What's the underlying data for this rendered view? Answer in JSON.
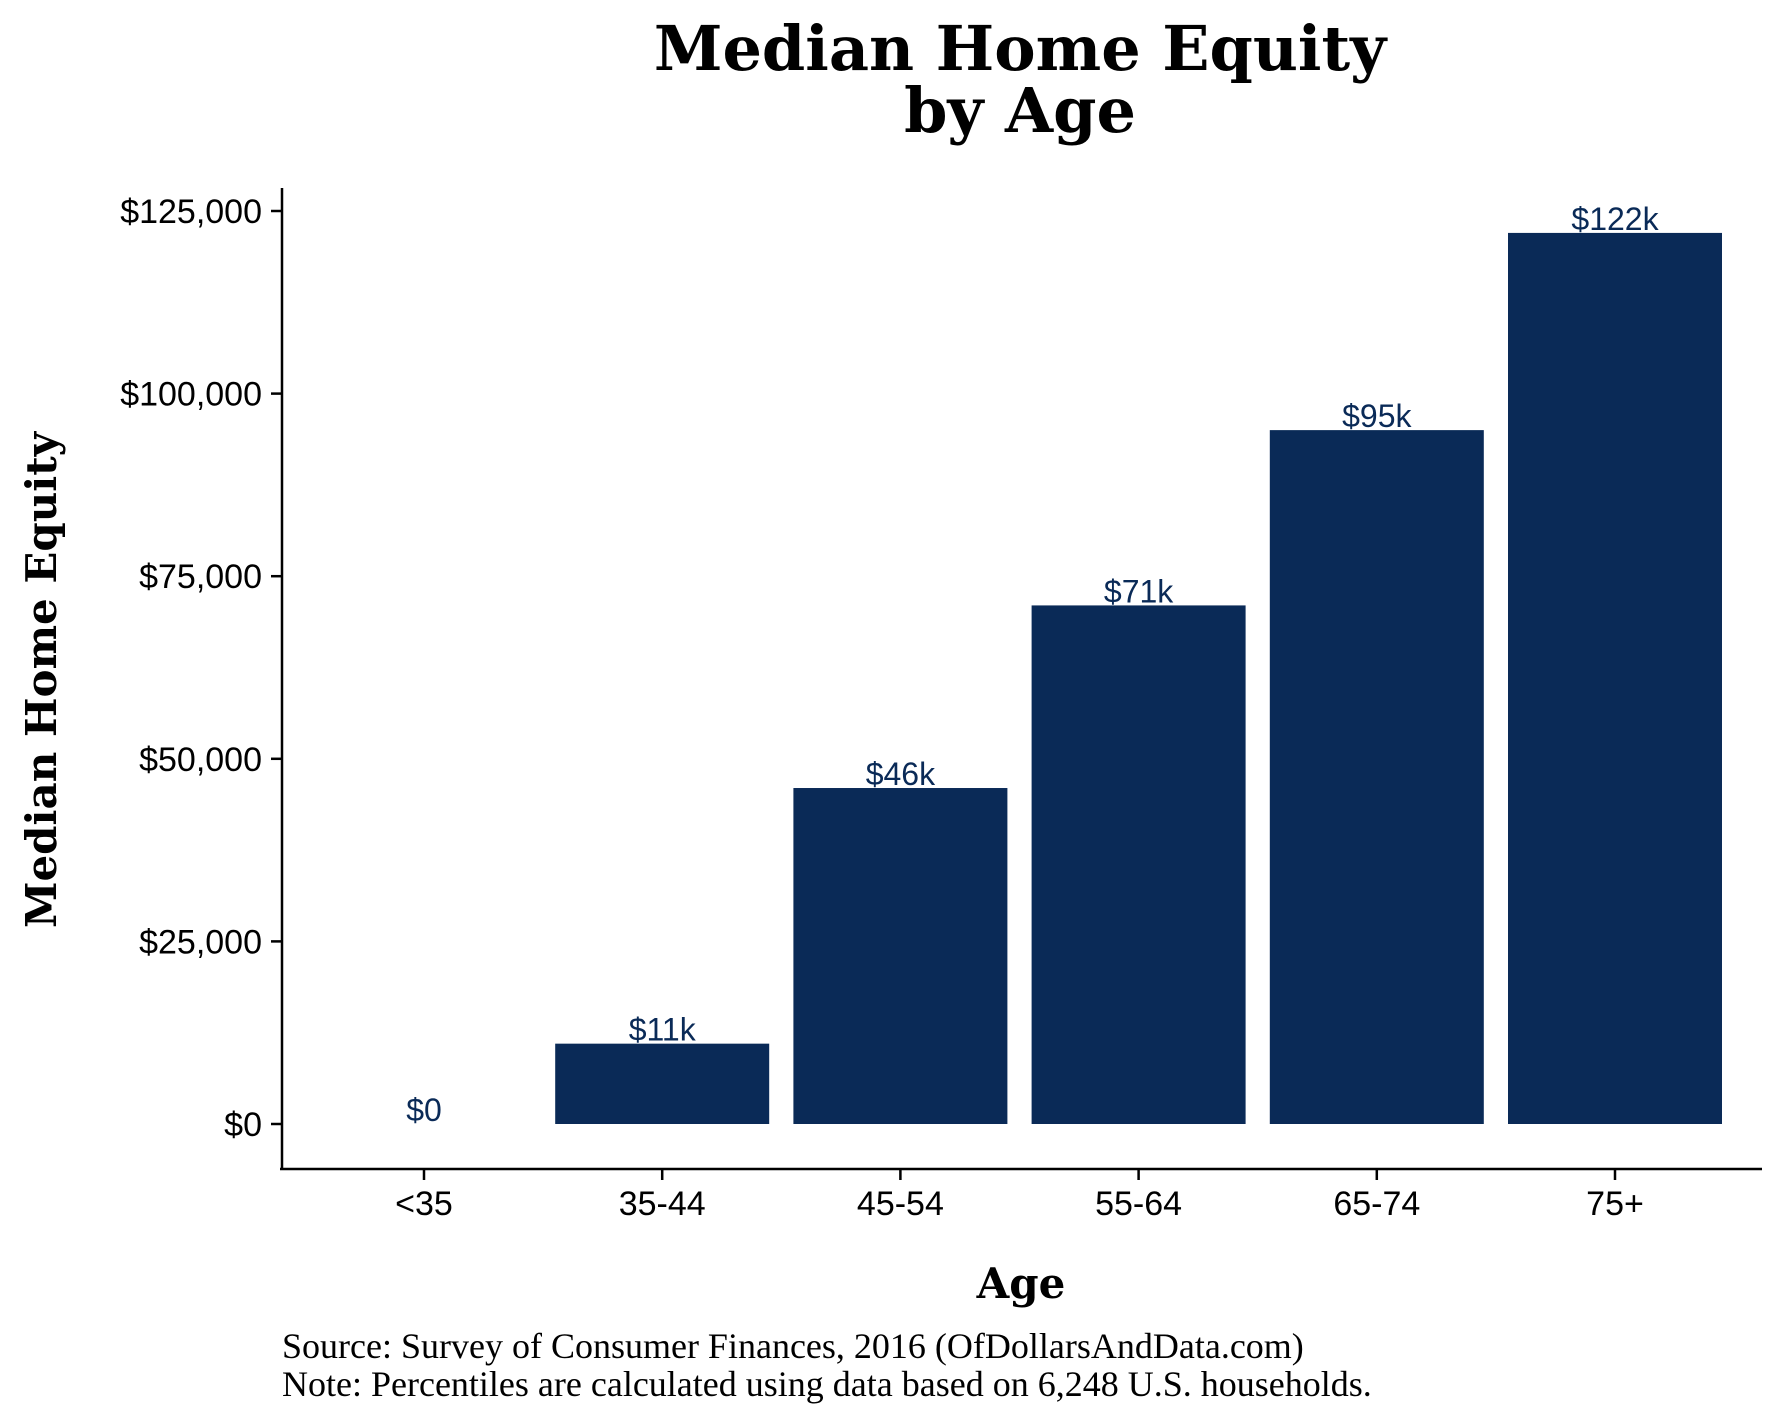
{
  "chart_data": {
    "type": "bar",
    "title_lines": [
      "Median Home Equity",
      "by Age"
    ],
    "xlabel": "Age",
    "ylabel": "Median Home Equity",
    "categories": [
      "<35",
      "35-44",
      "45-54",
      "55-64",
      "65-74",
      "75+"
    ],
    "values": [
      0,
      11000,
      46000,
      71000,
      95000,
      122000
    ],
    "data_labels": [
      "$0",
      "$11k",
      "$46k",
      "$71k",
      "$95k",
      "$122k"
    ],
    "y_ticks": [
      0,
      25000,
      50000,
      75000,
      100000,
      125000
    ],
    "y_tick_labels": [
      "$0",
      "$25,000",
      "$50,000",
      "$75,000",
      "$100,000",
      "$125,000"
    ],
    "ylim": [
      0,
      125000
    ],
    "grid": false,
    "bar_color": "#0a2a57",
    "label_color": "#0a2a57"
  },
  "footnotes": [
    "Source:  Survey of Consumer Finances, 2016 (OfDollarsAndData.com)",
    "Note: Percentiles are calculated using data based on 6,248 U.S. households."
  ]
}
